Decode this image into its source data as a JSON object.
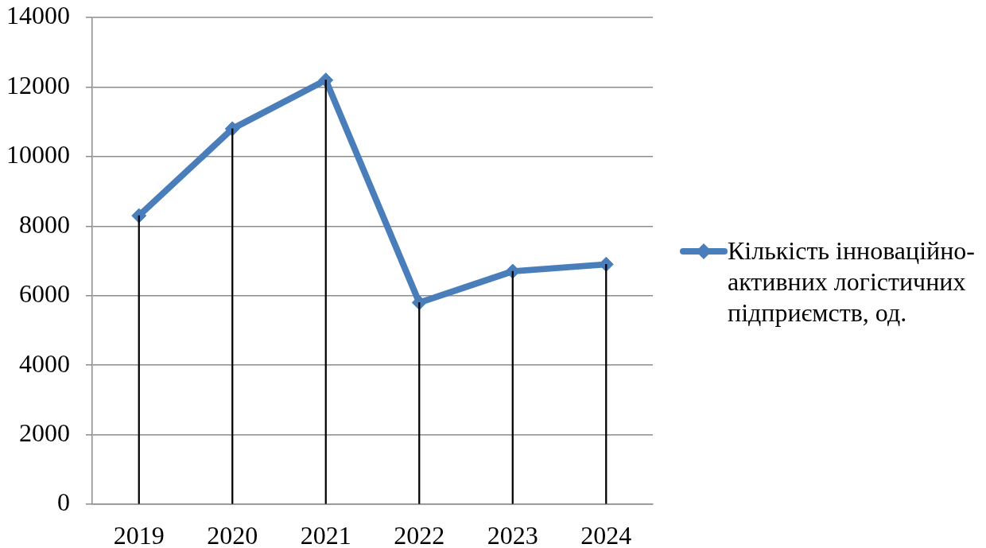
{
  "chart_data": {
    "type": "line",
    "categories": [
      "2019",
      "2020",
      "2021",
      "2022",
      "2023",
      "2024"
    ],
    "series": [
      {
        "name": "Кількість інноваційно-активних логістичних підприємств, од.",
        "color": "#4a7ebb",
        "values": [
          8300,
          10800,
          12200,
          5800,
          6700,
          6900
        ]
      },
      {
        "type": "bar",
        "color": "#000000",
        "values": [
          8300,
          10800,
          12200,
          5800,
          6700,
          6900
        ]
      }
    ],
    "ylim": [
      0,
      14000
    ],
    "yticks": [
      0,
      2000,
      4000,
      6000,
      8000,
      10000,
      12000,
      14000
    ],
    "grid": "y",
    "legend": "right",
    "marker": "diamond",
    "line_style": "solid"
  }
}
